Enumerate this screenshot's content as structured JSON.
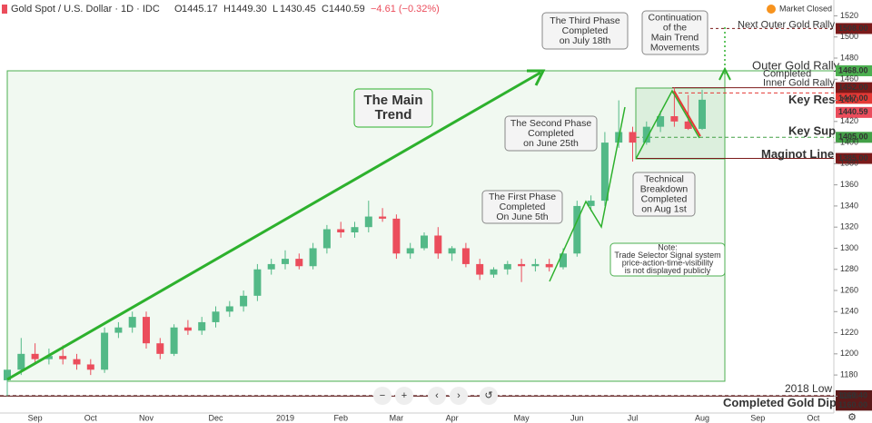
{
  "header": {
    "title": "Gold Spot / U.S. Dollar · 1D · IDC",
    "ohlc": [
      {
        "key": "O",
        "value": "1445.17"
      },
      {
        "key": "H",
        "value": "1449.30"
      },
      {
        "key": "L",
        "value": "1430.45"
      },
      {
        "key": "C",
        "value": "1440.59"
      }
    ],
    "change": "−4.61 (−0.32%)",
    "status": "Market Closed"
  },
  "chart_data": {
    "type": "candlestick",
    "categories": [
      "",
      "",
      "Sep",
      "",
      "",
      "",
      "Oct",
      "",
      "",
      "",
      "Nov",
      "",
      "",
      "",
      "",
      "Dec",
      "",
      "",
      "",
      "",
      "2019",
      "",
      "",
      "",
      "Feb",
      "",
      "",
      "",
      "Mar",
      "",
      "",
      "",
      "Apr",
      "",
      "",
      "",
      "",
      "May",
      "",
      "",
      "",
      "Jun",
      "",
      "",
      "",
      "Jul",
      "",
      "",
      "",
      "",
      "Aug",
      "",
      "",
      "",
      "Sep",
      "",
      "",
      "",
      "Oct"
    ],
    "open": [
      1175,
      1185,
      1200,
      1195,
      1198,
      1195,
      1190,
      1185,
      1220,
      1225,
      1235,
      1210,
      1200,
      1225,
      1222,
      1230,
      1240,
      1245,
      1255,
      1280,
      1285,
      1290,
      1283,
      1300,
      1318,
      1315,
      1320,
      1330,
      1328,
      1295,
      1300,
      1312,
      1295,
      1300,
      1285,
      1275,
      1280,
      1285,
      1283,
      1285,
      1282,
      1295,
      1340,
      1345,
      1400,
      1410,
      1400,
      1415,
      1425,
      1420,
      1413,
      null,
      null,
      null,
      null,
      null,
      null,
      null,
      null
    ],
    "high": [
      1185,
      1215,
      1210,
      1205,
      1208,
      1200,
      1195,
      1225,
      1230,
      1240,
      1240,
      1215,
      1228,
      1232,
      1235,
      1245,
      1250,
      1260,
      1285,
      1290,
      1298,
      1295,
      1305,
      1322,
      1325,
      1325,
      1345,
      1338,
      1332,
      1305,
      1315,
      1320,
      1302,
      1305,
      1290,
      1282,
      1288,
      1290,
      1290,
      1290,
      1300,
      1345,
      1350,
      1410,
      1440,
      1415,
      1420,
      1430,
      1452,
      1445,
      1450,
      null,
      null,
      null,
      null,
      null,
      null,
      null,
      null
    ],
    "low": [
      1160,
      1180,
      1192,
      1190,
      1190,
      1185,
      1180,
      1182,
      1215,
      1220,
      1205,
      1195,
      1198,
      1218,
      1218,
      1225,
      1235,
      1240,
      1250,
      1275,
      1280,
      1280,
      1280,
      1295,
      1310,
      1310,
      1315,
      1325,
      1290,
      1290,
      1298,
      1290,
      1288,
      1282,
      1270,
      1272,
      1275,
      1268,
      1278,
      1278,
      1280,
      1292,
      1335,
      1340,
      1395,
      1382,
      1398,
      1410,
      1415,
      1412,
      1412,
      null,
      null,
      null,
      null,
      null,
      null,
      null,
      null
    ],
    "close": [
      1185,
      1200,
      1195,
      1198,
      1195,
      1190,
      1185,
      1220,
      1225,
      1235,
      1210,
      1200,
      1225,
      1222,
      1230,
      1240,
      1245,
      1255,
      1280,
      1285,
      1290,
      1283,
      1300,
      1318,
      1315,
      1320,
      1330,
      1328,
      1295,
      1300,
      1312,
      1295,
      1300,
      1285,
      1275,
      1280,
      1285,
      1283,
      1285,
      1282,
      1295,
      1340,
      1345,
      1400,
      1410,
      1400,
      1415,
      1425,
      1420,
      1413,
      1440.59,
      null,
      null,
      null,
      null,
      null,
      null,
      null,
      null
    ],
    "up_color": "#53b987",
    "down_color": "#eb4d5c",
    "ylim": [
      1144,
      1535
    ],
    "yticks": [
      1160,
      1180,
      1200,
      1220,
      1240,
      1260,
      1280,
      1300,
      1320,
      1340,
      1360,
      1380,
      1400,
      1420,
      1440,
      1460,
      1480,
      1500,
      1520
    ],
    "levels": [
      {
        "label": [
          "Next Outer Gold Rally"
        ],
        "value": 1508,
        "value_label": "1508.00",
        "color": "#7b1a1a"
      },
      {
        "label": [
          "Outer Gold Rally"
        ],
        "value": 1468,
        "value_label": "1468.00",
        "color": "#4caf50"
      },
      {
        "label": [
          "Completed",
          "Inner Gold Rally"
        ],
        "value": 1452,
        "value_label": "1452.00",
        "color": "#7b1a1a"
      },
      {
        "label": [
          "Key Res"
        ],
        "value": 1447,
        "value_label": "1447.00",
        "color": "#e53935"
      },
      {
        "label": [],
        "value": 1440.59,
        "value_label": "1440.59",
        "color": "#eb4d5c"
      },
      {
        "label": [
          "Key Sup"
        ],
        "value": 1405,
        "value_label": "1405.00",
        "color": "#43a047"
      },
      {
        "label": [
          "Maginot Line"
        ],
        "value": 1385,
        "value_label": "1385.00",
        "color": "#7b1a1a"
      },
      {
        "label": [
          "2018 Low"
        ],
        "value": 1160.4,
        "value_label": "1160.40",
        "color": "#5b1a1a"
      },
      {
        "label": [
          "Completed Gold Dip"
        ],
        "value": 1160,
        "value_label": "1160.00",
        "color": "#5b1a1a"
      }
    ],
    "annotations": [
      {
        "lines": [
          "The Main",
          "Trend"
        ]
      },
      {
        "lines": [
          "The First Phase",
          "Completed",
          "On June 5th"
        ]
      },
      {
        "lines": [
          "The Second Phase",
          "Completed",
          "on June 25th"
        ]
      },
      {
        "lines": [
          "The Third Phase",
          "Completed",
          "on July 18th"
        ]
      },
      {
        "lines": [
          "Continuation",
          "of the",
          "Main Trend",
          "Movements"
        ]
      },
      {
        "lines": [
          "Technical",
          "Breakdown",
          "Completed",
          "on Aug 1st"
        ]
      },
      {
        "lines": [
          "Note:",
          "Trade Selector Signal system",
          "price-action-time-visibility",
          "is not displayed publicly"
        ]
      }
    ]
  }
}
